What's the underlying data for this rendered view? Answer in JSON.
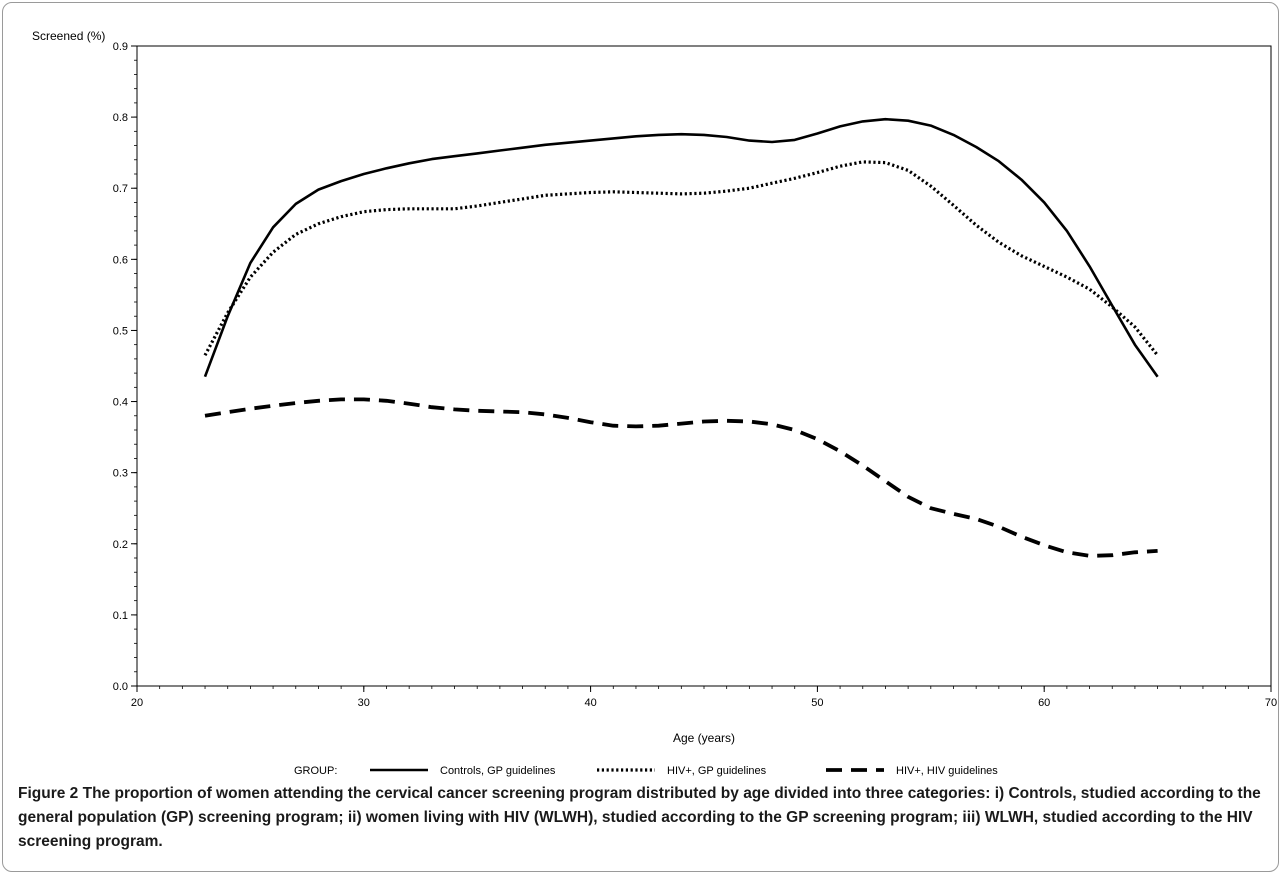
{
  "chart_data": {
    "type": "line",
    "ylabel": "Screened (%)",
    "xlabel": "Age (years)",
    "xlim": [
      20,
      70
    ],
    "ylim": [
      0.0,
      0.9
    ],
    "x_ticks": [
      20,
      30,
      40,
      50,
      60,
      70
    ],
    "y_ticks": [
      0.0,
      0.1,
      0.2,
      0.3,
      0.4,
      0.5,
      0.6,
      0.7,
      0.8,
      0.9
    ],
    "y_tick_labels": [
      "0.0",
      "0.1",
      "0.2",
      "0.3",
      "0.4",
      "0.5",
      "0.6",
      "0.7",
      "0.8",
      "0.9"
    ],
    "grid": false,
    "legend": {
      "title": "GROUP:",
      "placement": "bottom"
    },
    "series": [
      {
        "name": "Controls, GP guidelines",
        "style": "solid",
        "x": [
          23,
          24,
          25,
          26,
          27,
          28,
          29,
          30,
          31,
          32,
          33,
          34,
          35,
          36,
          37,
          38,
          39,
          40,
          41,
          42,
          43,
          44,
          45,
          46,
          47,
          48,
          49,
          50,
          51,
          52,
          53,
          54,
          55,
          56,
          57,
          58,
          59,
          60,
          61,
          62,
          63,
          64,
          65
        ],
        "y": [
          0.435,
          0.52,
          0.595,
          0.645,
          0.678,
          0.698,
          0.71,
          0.72,
          0.728,
          0.735,
          0.741,
          0.745,
          0.749,
          0.753,
          0.757,
          0.761,
          0.764,
          0.767,
          0.77,
          0.773,
          0.775,
          0.776,
          0.775,
          0.772,
          0.767,
          0.765,
          0.768,
          0.777,
          0.787,
          0.794,
          0.797,
          0.795,
          0.788,
          0.775,
          0.758,
          0.738,
          0.712,
          0.68,
          0.64,
          0.59,
          0.535,
          0.48,
          0.435
        ]
      },
      {
        "name": "HIV+, GP guidelines",
        "style": "dotted",
        "x": [
          23,
          24,
          25,
          26,
          27,
          28,
          29,
          30,
          31,
          32,
          33,
          34,
          35,
          36,
          37,
          38,
          39,
          40,
          41,
          42,
          43,
          44,
          45,
          46,
          47,
          48,
          49,
          50,
          51,
          52,
          53,
          54,
          55,
          56,
          57,
          58,
          59,
          60,
          61,
          62,
          63,
          64,
          65
        ],
        "y": [
          0.465,
          0.525,
          0.575,
          0.61,
          0.635,
          0.65,
          0.66,
          0.667,
          0.67,
          0.671,
          0.671,
          0.671,
          0.675,
          0.68,
          0.685,
          0.69,
          0.692,
          0.694,
          0.695,
          0.694,
          0.693,
          0.692,
          0.693,
          0.696,
          0.7,
          0.707,
          0.714,
          0.722,
          0.731,
          0.737,
          0.736,
          0.725,
          0.703,
          0.676,
          0.648,
          0.624,
          0.605,
          0.59,
          0.575,
          0.558,
          0.533,
          0.505,
          0.465
        ]
      },
      {
        "name": "HIV+, HIV guidelines",
        "style": "dashed",
        "x": [
          23,
          24,
          25,
          26,
          27,
          28,
          29,
          30,
          31,
          32,
          33,
          34,
          35,
          36,
          37,
          38,
          39,
          40,
          41,
          42,
          43,
          44,
          45,
          46,
          47,
          48,
          49,
          50,
          51,
          52,
          53,
          54,
          55,
          56,
          57,
          58,
          59,
          60,
          61,
          62,
          63,
          64,
          65
        ],
        "y": [
          0.38,
          0.385,
          0.39,
          0.394,
          0.398,
          0.401,
          0.403,
          0.403,
          0.401,
          0.397,
          0.392,
          0.389,
          0.387,
          0.386,
          0.385,
          0.382,
          0.377,
          0.371,
          0.366,
          0.365,
          0.366,
          0.369,
          0.372,
          0.373,
          0.372,
          0.368,
          0.36,
          0.347,
          0.33,
          0.31,
          0.288,
          0.266,
          0.25,
          0.242,
          0.235,
          0.224,
          0.21,
          0.198,
          0.188,
          0.183,
          0.184,
          0.188,
          0.19
        ]
      }
    ]
  },
  "caption": {
    "label": "Figure 2",
    "text": "The proportion of women attending the cervical cancer screening program distributed by age divided into three categories: i) Controls, studied according to the general population (GP) screening program; ii) women living with HIV (WLWH), studied according to the GP screening program; iii) WLWH, studied according to the HIV screening program."
  }
}
